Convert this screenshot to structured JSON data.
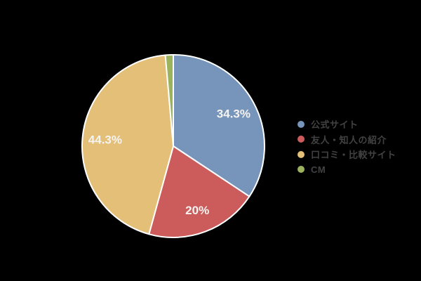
{
  "chart_data": {
    "type": "pie",
    "title": "",
    "xlabel": "",
    "ylabel": "",
    "legend_position": "right",
    "direction": "clockwise",
    "start_angle_deg": 0,
    "background_color": "#000000",
    "slice_border_color": "#ffffff",
    "slice_label_color": "#f5f3f0",
    "legend_text_color": "#424242",
    "slices": [
      {
        "id": "official-site",
        "label": "公式サイト",
        "value": 34.3,
        "display": "34.3%",
        "color": "#7795ba"
      },
      {
        "id": "friend-referral",
        "label": "友人・知人の紹介",
        "value": 20.0,
        "display": "20%",
        "color": "#cc5c5c"
      },
      {
        "id": "review-comparison-site",
        "label": "口コミ・比較サイト",
        "value": 44.3,
        "display": "44.3%",
        "color": "#e3bf78"
      },
      {
        "id": "cm",
        "label": "CM",
        "value": 1.4,
        "display": "",
        "color": "#9cb35e"
      }
    ]
  }
}
